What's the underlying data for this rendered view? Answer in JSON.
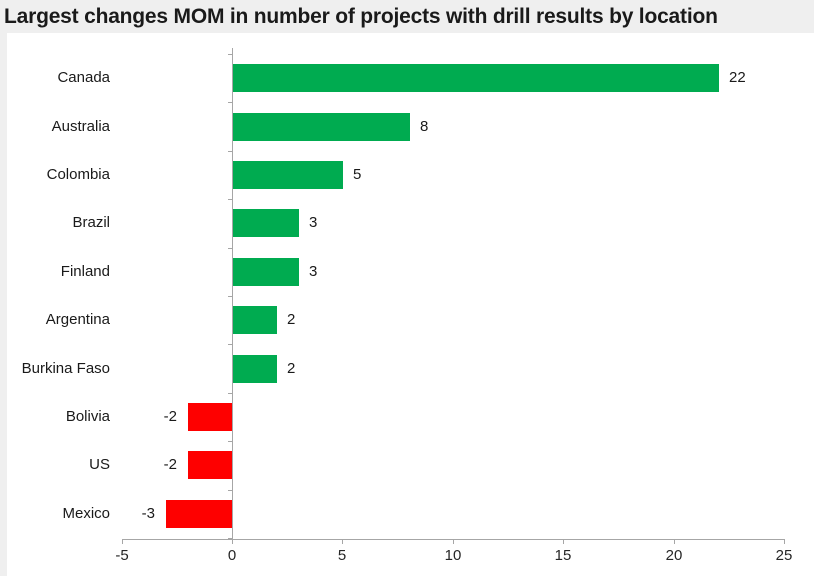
{
  "title": "Largest changes MOM in number of projects with drill results by location",
  "colors": {
    "positive_bar": "#00ab50",
    "negative_bar": "#fe0000",
    "axis": "#a6a6a6",
    "text": "#1a1a1a",
    "band_background": "#efefef",
    "surface_background": "#ffffff"
  },
  "chart_data": {
    "type": "bar",
    "orientation": "horizontal",
    "title": "Largest changes MOM in number of projects with drill results by location",
    "categories": [
      "Canada",
      "Australia",
      "Colombia",
      "Brazil",
      "Finland",
      "Argentina",
      "Burkina Faso",
      "Bolivia",
      "US",
      "Mexico"
    ],
    "values": [
      22,
      8,
      5,
      3,
      3,
      2,
      2,
      -2,
      -2,
      -3
    ],
    "data_labels": [
      22,
      8,
      5,
      3,
      3,
      2,
      2,
      -2,
      -2,
      -3
    ],
    "xlabel": "",
    "ylabel": "",
    "xlim": [
      -5,
      25
    ],
    "x_ticks": [
      -5,
      0,
      5,
      10,
      15,
      20,
      25
    ],
    "grid": false,
    "legend": "none",
    "positive_color": "#00ab50",
    "negative_color": "#fe0000"
  }
}
